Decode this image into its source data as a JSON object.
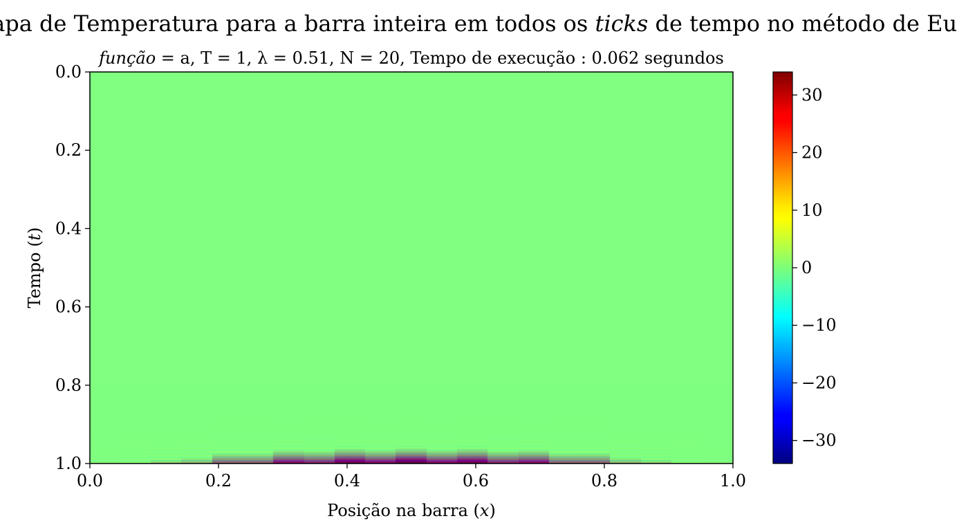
{
  "figure": {
    "suptitle_pre": "Mapa de Temperatura para a barra inteira em todos os ",
    "suptitle_ital": "ticks",
    "suptitle_post": " de tempo no método de Euler",
    "subtitle_ital": "função",
    "subtitle_rest": " = a,  T = 1,  λ = 0.51,  N = 20,  Tempo de execução :  0.062 segundos"
  },
  "chart_data": {
    "type": "heatmap",
    "xlabel_pre": "Posição na barra (",
    "xlabel_var": "x",
    "xlabel_post": ")",
    "ylabel_pre": "Tempo (",
    "ylabel_var": "t",
    "ylabel_post": ")",
    "xlim": [
      0.0,
      1.0
    ],
    "ylim": [
      0.0,
      1.0
    ],
    "y_inverted": true,
    "x_ticks": [
      "0.0",
      "0.2",
      "0.4",
      "0.6",
      "0.8",
      "1.0"
    ],
    "y_ticks": [
      "0.0",
      "0.2",
      "0.4",
      "0.6",
      "0.8",
      "1.0"
    ],
    "colormap": "jet",
    "colorbar_range": [
      -34,
      34
    ],
    "colorbar_ticks": [
      30,
      20,
      10,
      0,
      -10,
      -20,
      -30
    ],
    "colorbar_tick_labels": [
      "30",
      "20",
      "10",
      "0",
      "−10",
      "−20",
      "−30"
    ],
    "grid": false,
    "nx": 21,
    "nt": 850,
    "instability_onset_t": 0.8,
    "max_amplitude": 34,
    "background_value": 0
  }
}
